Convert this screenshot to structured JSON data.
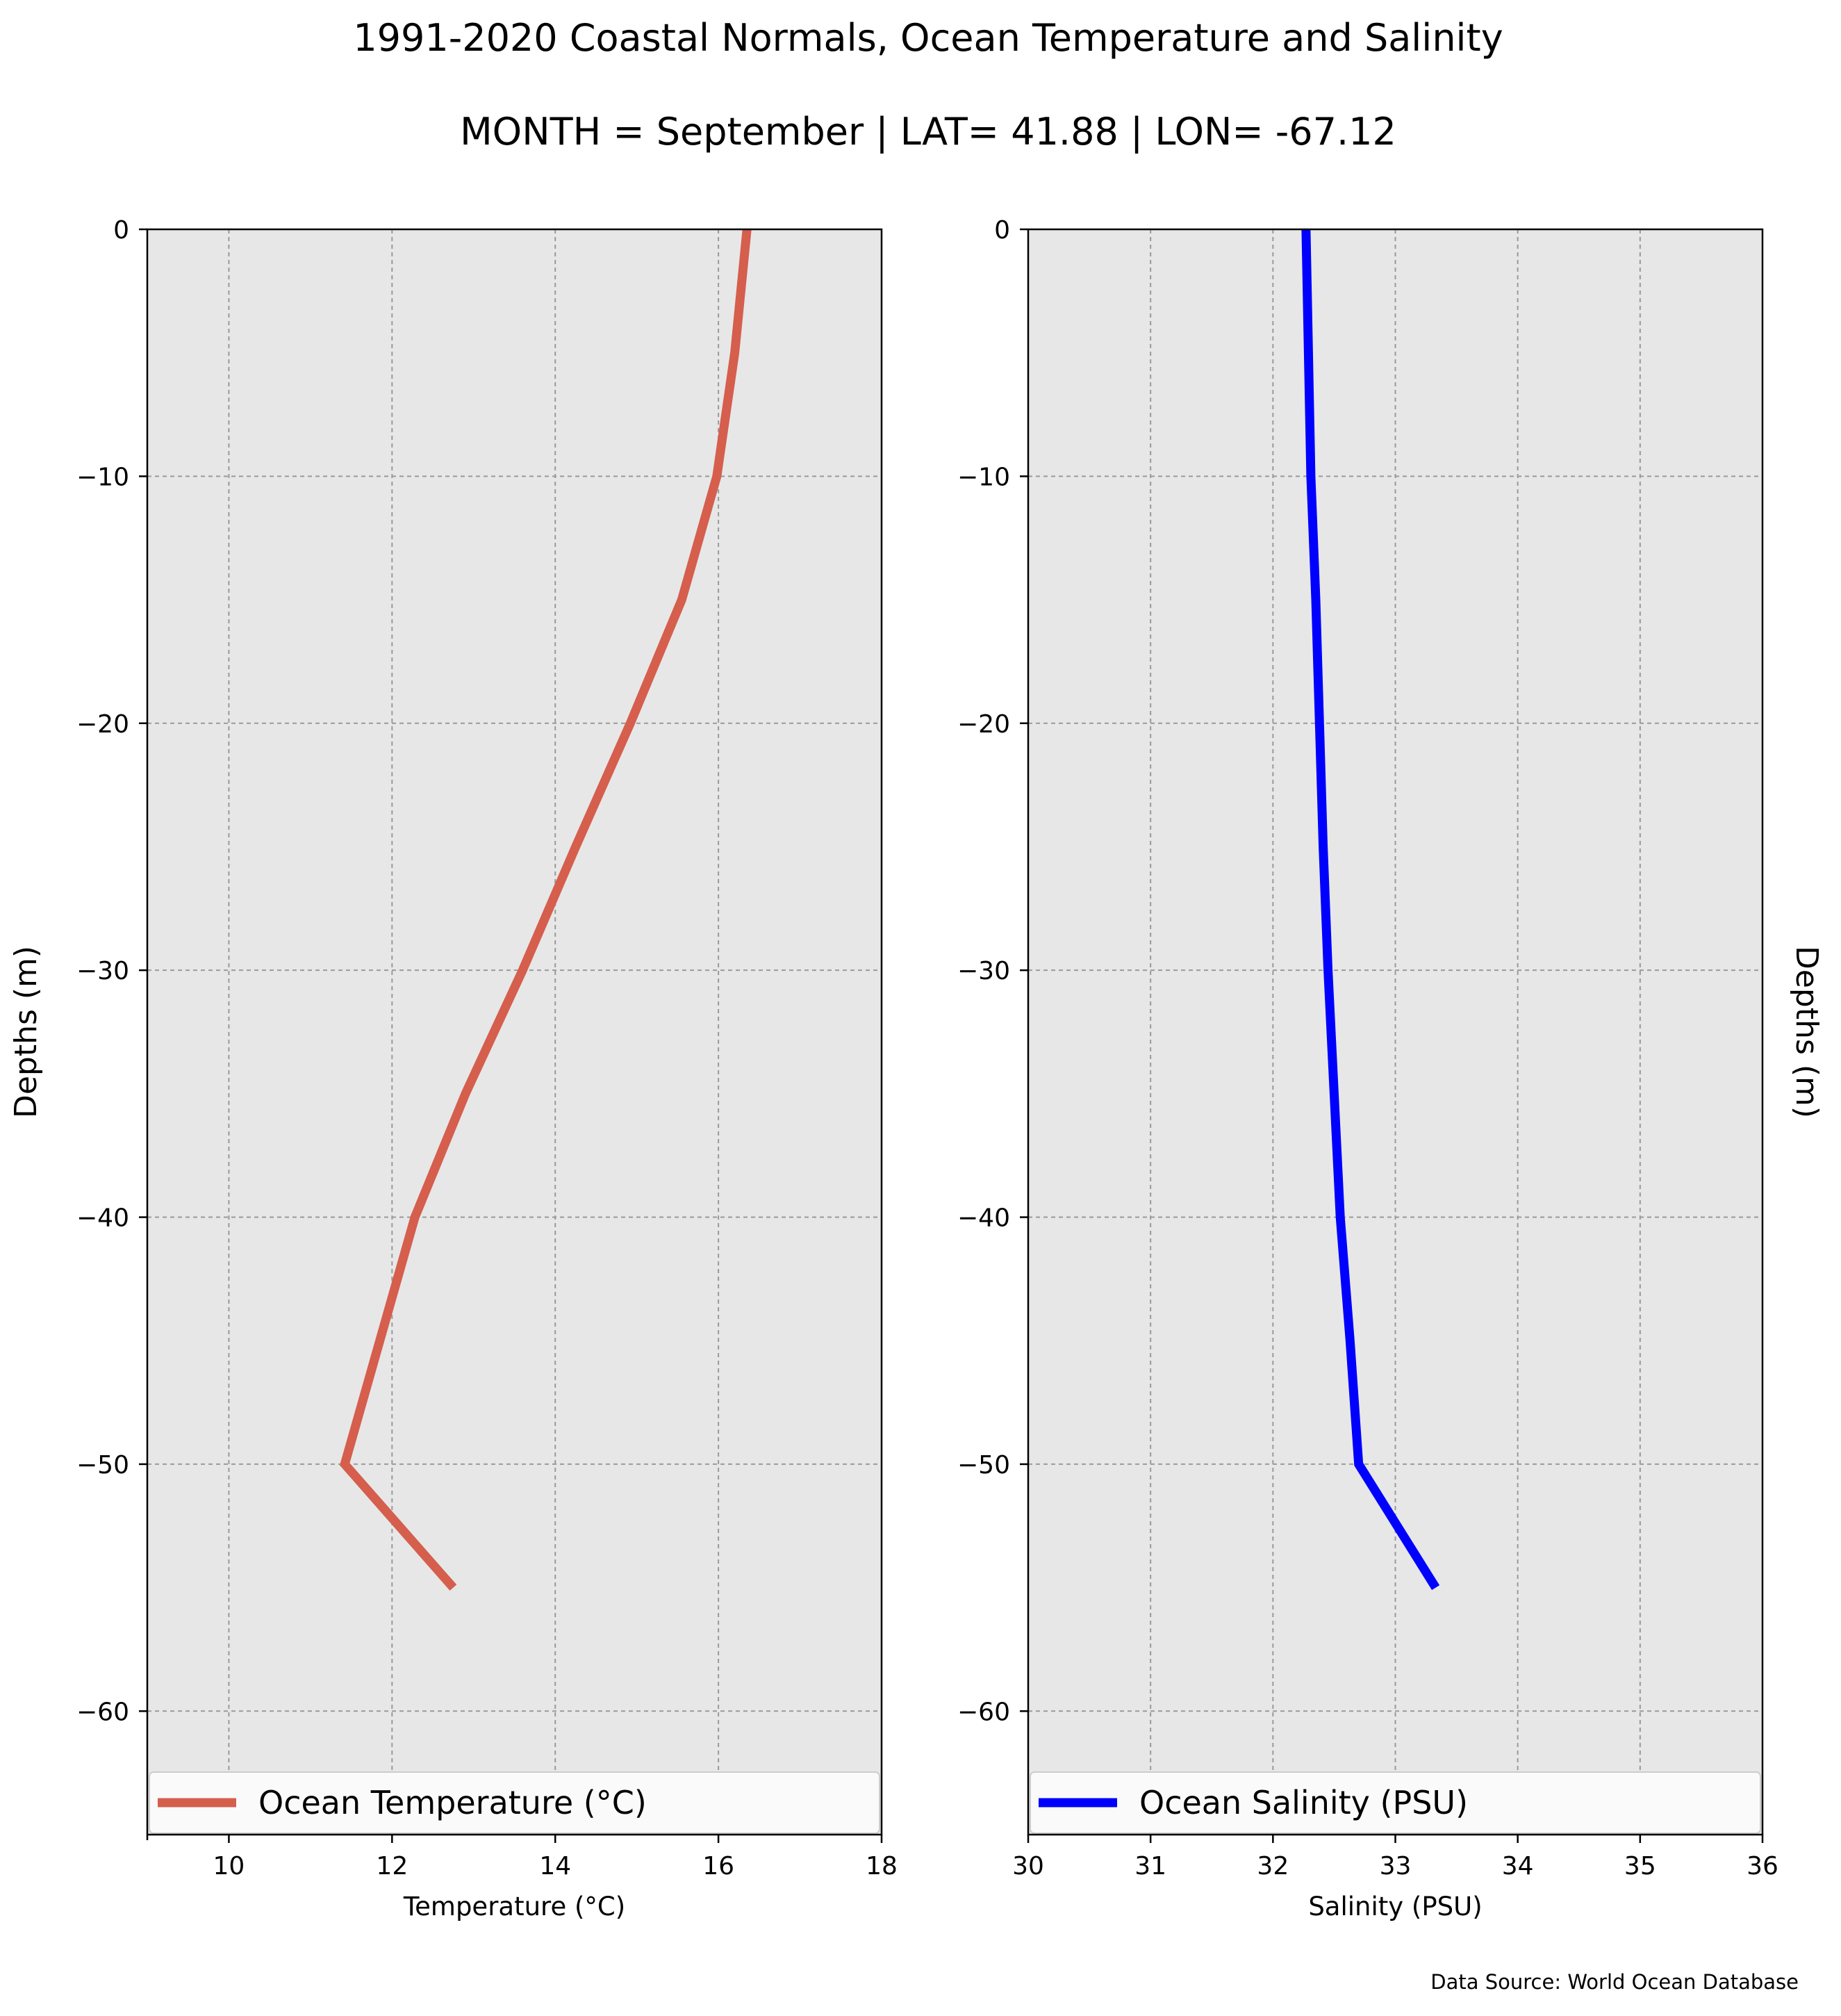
{
  "title": "1991-2020 Coastal Normals, Ocean Temperature and Salinity",
  "subtitle": "MONTH = September | LAT= 41.88 | LON= -67.12",
  "source": "Data Source: World Ocean Database",
  "colors": {
    "temperature": "#d55e4d",
    "salinity": "#0000ff",
    "plot_bg": "#e7e7e7"
  },
  "chart_data": [
    {
      "type": "line",
      "xlabel": "Temperature (°C)",
      "ylabel": "Depths (m)",
      "xlim": [
        9,
        18
      ],
      "ylim": [
        -65,
        0
      ],
      "xticks": [
        10,
        12,
        14,
        16,
        18
      ],
      "yticks": [
        0,
        -10,
        -20,
        -30,
        -40,
        -50,
        -60
      ],
      "grid": true,
      "legend_position": "bottom",
      "series": [
        {
          "name": "Ocean Temperature (°C)",
          "color": "#d55e4d",
          "x": [
            16.35,
            16.2,
            15.98,
            15.55,
            14.92,
            14.25,
            13.6,
            12.9,
            12.28,
            11.85,
            11.42,
            12.75
          ],
          "y": [
            0,
            -5,
            -10,
            -15,
            -20,
            -25,
            -30,
            -35,
            -40,
            -45,
            -50,
            -55
          ]
        }
      ]
    },
    {
      "type": "line",
      "xlabel": "Salinity (PSU)",
      "ylabel": "Depths (m)",
      "xlim": [
        30,
        36
      ],
      "ylim": [
        -65,
        0
      ],
      "xticks": [
        30,
        31,
        32,
        33,
        34,
        35,
        36
      ],
      "yticks": [
        0,
        -10,
        -20,
        -30,
        -40,
        -50,
        -60
      ],
      "grid": true,
      "legend_position": "bottom",
      "series": [
        {
          "name": "Ocean Salinity (PSU)",
          "color": "#0000ff",
          "x": [
            32.27,
            32.29,
            32.31,
            32.35,
            32.38,
            32.41,
            32.45,
            32.5,
            32.55,
            32.63,
            32.7,
            33.33
          ],
          "y": [
            0,
            -5,
            -10,
            -15,
            -20,
            -25,
            -30,
            -35,
            -40,
            -45,
            -50,
            -55
          ]
        }
      ]
    }
  ]
}
